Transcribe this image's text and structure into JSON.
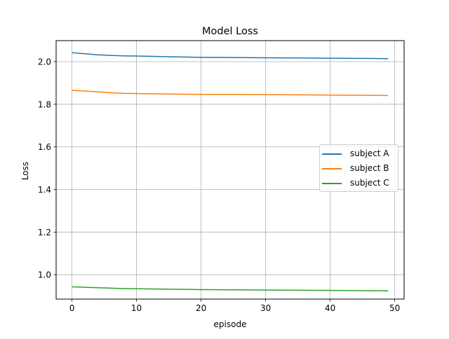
{
  "chart_data": {
    "type": "line",
    "title": "Model Loss",
    "xlabel": "episode",
    "ylabel": "Loss",
    "xlim": [
      -2.45,
      51.45
    ],
    "ylim": [
      0.8855,
      2.0985
    ],
    "xticks": [
      0,
      10,
      20,
      30,
      40,
      50
    ],
    "yticks": [
      1.0,
      1.2,
      1.4,
      1.6,
      1.8,
      2.0
    ],
    "xtick_labels": [
      "0",
      "10",
      "20",
      "30",
      "40",
      "50"
    ],
    "ytick_labels": [
      "1.0",
      "1.2",
      "1.4",
      "1.6",
      "1.8",
      "2.0"
    ],
    "grid": true,
    "legend_position": "center-right",
    "x": [
      0,
      2,
      4,
      6,
      8,
      10,
      15,
      20,
      25,
      30,
      35,
      40,
      45,
      49
    ],
    "series": [
      {
        "name": "subject A",
        "color": "#1f77b4",
        "values": [
          2.042,
          2.037,
          2.032,
          2.029,
          2.027,
          2.026,
          2.023,
          2.02,
          2.019,
          2.018,
          2.017,
          2.016,
          2.015,
          2.014
        ]
      },
      {
        "name": "subject B",
        "color": "#ff7f0e",
        "values": [
          1.865,
          1.862,
          1.858,
          1.854,
          1.851,
          1.85,
          1.848,
          1.846,
          1.846,
          1.845,
          1.844,
          1.843,
          1.842,
          1.841
        ]
      },
      {
        "name": "subject C",
        "color": "#2ca02c",
        "values": [
          0.943,
          0.941,
          0.939,
          0.937,
          0.935,
          0.934,
          0.932,
          0.93,
          0.929,
          0.928,
          0.927,
          0.926,
          0.925,
          0.924
        ]
      }
    ]
  }
}
